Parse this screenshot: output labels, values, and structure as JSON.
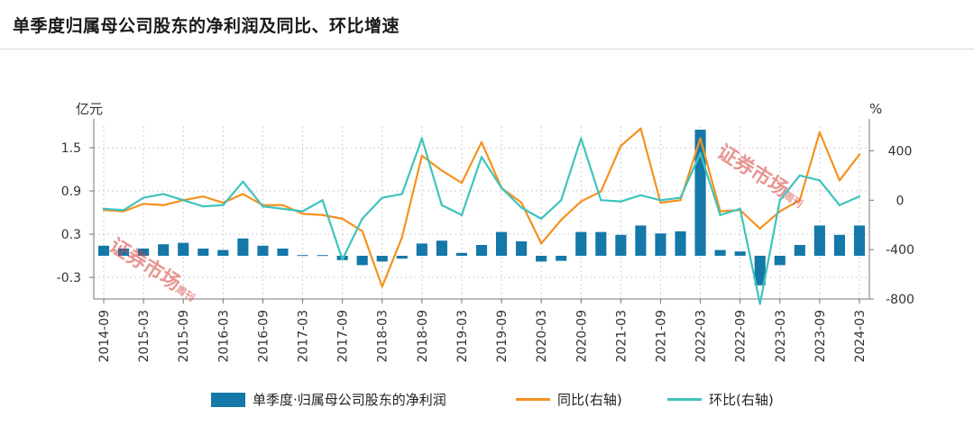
{
  "title": "单季度归属母公司股东的净利润及同比、环比增速",
  "colors": {
    "bar": "#1478a8",
    "yoy": "#f5921e",
    "qoq": "#3fc3bd",
    "grid": "#cfcfcf",
    "watermark": "#d6403a"
  },
  "watermark_text": "证券市场",
  "watermark_small": "周刊",
  "chart_data": {
    "type": "bar",
    "title": "单季度归属母公司股东的净利润及同比、环比增速",
    "xlabel": "",
    "ylabel": "亿元",
    "y2label": "%",
    "ylim": [
      -0.6,
      1.8
    ],
    "y2lim": [
      -800,
      600
    ],
    "yticks": [
      1.5,
      0.9,
      0.3,
      -0.3
    ],
    "y2ticks": [
      400,
      0,
      -400,
      -800
    ],
    "grid": true,
    "legend_position": "bottom",
    "categories": [
      "2014-09",
      "2014-12",
      "2015-03",
      "2015-06",
      "2015-09",
      "2015-12",
      "2016-03",
      "2016-06",
      "2016-09",
      "2016-12",
      "2017-03",
      "2017-06",
      "2017-09",
      "2017-12",
      "2018-03",
      "2018-06",
      "2018-09",
      "2018-12",
      "2019-03",
      "2019-06",
      "2019-09",
      "2019-12",
      "2020-03",
      "2020-06",
      "2020-09",
      "2020-12",
      "2021-03",
      "2021-06",
      "2021-09",
      "2021-12",
      "2022-03",
      "2022-06",
      "2022-09",
      "2022-12",
      "2023-03",
      "2023-06",
      "2023-09",
      "2023-12",
      "2024-03"
    ],
    "tick_labels": [
      "2014-09",
      "2015-03",
      "2015-09",
      "2016-03",
      "2016-09",
      "2017-03",
      "2017-09",
      "2018-03",
      "2018-09",
      "2019-03",
      "2019-09",
      "2020-03",
      "2020-09",
      "2021-03",
      "2021-09",
      "2022-03",
      "2022-09",
      "2023-03",
      "2023-09",
      "2024-03"
    ],
    "series": [
      {
        "name": "单季度·归属母公司股东的净利润",
        "type": "bar",
        "axis": "left",
        "values": [
          0.14,
          0.1,
          0.1,
          0.16,
          0.18,
          0.1,
          0.08,
          0.24,
          0.14,
          0.1,
          0.01,
          0.01,
          -0.06,
          -0.13,
          -0.08,
          -0.04,
          0.17,
          0.21,
          0.04,
          0.15,
          0.33,
          0.2,
          -0.08,
          -0.07,
          0.33,
          0.33,
          0.29,
          0.42,
          0.31,
          0.34,
          1.75,
          0.08,
          0.06,
          -0.41,
          -0.13,
          0.15,
          0.42,
          0.29,
          0.42
        ]
      },
      {
        "name": "同比(右轴)",
        "type": "line",
        "axis": "right",
        "values": [
          -80,
          -90,
          -30,
          -40,
          0,
          30,
          -20,
          50,
          -40,
          -40,
          -110,
          -120,
          -150,
          -250,
          -700,
          -300,
          360,
          240,
          140,
          470,
          100,
          -20,
          -350,
          -160,
          -10,
          70,
          440,
          580,
          -20,
          0,
          500,
          -90,
          -80,
          -230,
          -90,
          0,
          550,
          160,
          370
        ]
      },
      {
        "name": "环比(右轴)",
        "type": "line",
        "axis": "right",
        "values": [
          -70,
          -80,
          20,
          50,
          0,
          -50,
          -40,
          150,
          -50,
          -70,
          -90,
          0,
          -480,
          -150,
          20,
          50,
          500,
          -40,
          -120,
          350,
          100,
          -60,
          -150,
          0,
          500,
          0,
          -10,
          40,
          0,
          20,
          380,
          -120,
          -70,
          -840,
          0,
          200,
          160,
          -40,
          30
        ]
      }
    ]
  },
  "legend": {
    "bar_label": "单季度·归属母公司股东的净利润",
    "yoy_label": "同比(右轴)",
    "qoq_label": "环比(右轴)"
  }
}
